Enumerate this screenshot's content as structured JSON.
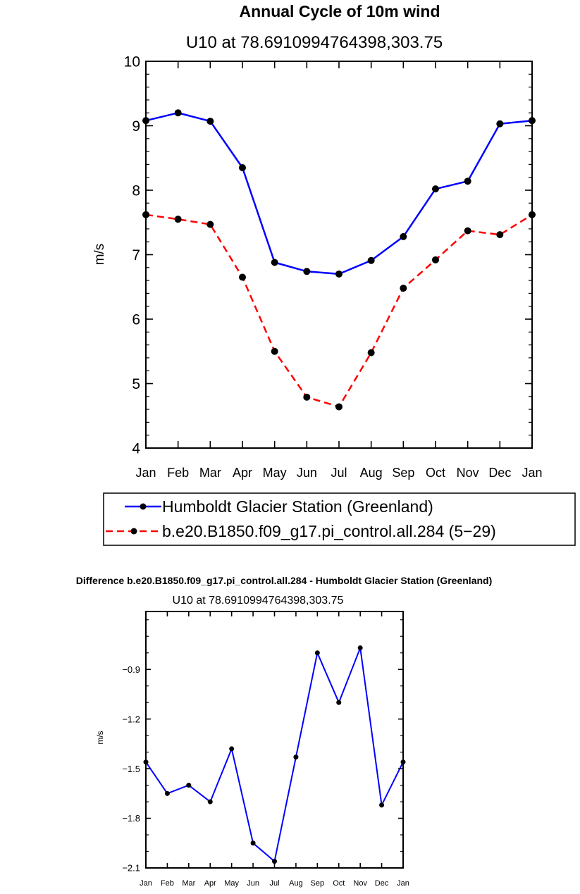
{
  "chart_data": [
    {
      "type": "line",
      "title": "Annual Cycle of 10m wind",
      "subtitle": "U10 at 78.6910994764398,303.75",
      "xlabel": "",
      "ylabel": "m/s",
      "categories": [
        "Jan",
        "Feb",
        "Mar",
        "Apr",
        "May",
        "Jun",
        "Jul",
        "Aug",
        "Sep",
        "Oct",
        "Nov",
        "Dec",
        "Jan"
      ],
      "ylim": [
        4,
        10
      ],
      "yticks": [
        4,
        5,
        6,
        7,
        8,
        9,
        10
      ],
      "ytick_labels": [
        "4",
        "5",
        "6",
        "7",
        "8",
        "9",
        "10"
      ],
      "legend_position": "bottom",
      "series": [
        {
          "name": "Humboldt Glacier Station (Greenland)",
          "color": "#0000ff",
          "dash": "solid",
          "values": [
            9.08,
            9.2,
            9.07,
            8.35,
            6.88,
            6.74,
            6.7,
            6.91,
            7.28,
            8.02,
            8.14,
            9.03,
            9.08
          ]
        },
        {
          "name": "b.e20.B1850.f09_g17.pi_control.all.284 (5−29)",
          "color": "#ff0000",
          "dash": "dashed",
          "values": [
            7.62,
            7.55,
            7.47,
            6.65,
            5.5,
            4.79,
            4.64,
            5.48,
            6.48,
            6.92,
            7.37,
            7.31,
            7.62
          ]
        }
      ]
    },
    {
      "type": "line",
      "title": "Difference b.e20.B1850.f09_g17.pi_control.all.284 - Humboldt Glacier Station (Greenland)",
      "subtitle": "U10 at 78.6910994764398,303.75",
      "xlabel": "",
      "ylabel": "m/s",
      "categories": [
        "Jan",
        "Feb",
        "Mar",
        "Apr",
        "May",
        "Jun",
        "Jul",
        "Aug",
        "Sep",
        "Oct",
        "Nov",
        "Dec",
        "Jan"
      ],
      "ylim": [
        -2.1,
        -0.55
      ],
      "yticks": [
        -2.1,
        -1.8,
        -1.5,
        -1.2,
        -0.9
      ],
      "ytick_labels": [
        "−2.1",
        "−1.8",
        "−1.5",
        "−1.2",
        "−0.9"
      ],
      "series": [
        {
          "color": "#0000ff",
          "dash": "solid",
          "values": [
            -1.46,
            -1.65,
            -1.6,
            -1.7,
            -1.38,
            -1.95,
            -2.06,
            -1.43,
            -0.8,
            -1.1,
            -0.77,
            -1.72,
            -1.46
          ]
        }
      ]
    }
  ]
}
